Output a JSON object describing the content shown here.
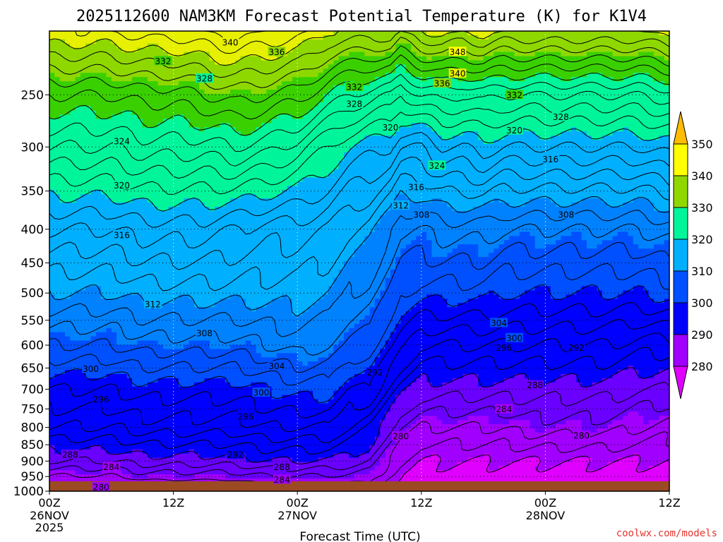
{
  "title": "2025112600 NAM3KM Forecast Potential Temperature (K) for K1V4",
  "xlabel": "Forecast Time (UTC)",
  "credit": "coolwx.com/models",
  "colors": {
    "terrain": "#9b4a23",
    "levels": [
      "#e000ff",
      "#a100ff",
      "#6a00ff",
      "#0000ff",
      "#0050ff",
      "#0082ff",
      "#00b0ff",
      "#00e0ff",
      "#00f59b",
      "#3ad000",
      "#8ed800",
      "#e6f000",
      "#ffff00",
      "#ffbc00"
    ]
  },
  "chart_data": {
    "type": "heatmap",
    "title": "2025112600 NAM3KM Forecast Potential Temperature (K) for K1V4",
    "xlabel": "Forecast Time (UTC)",
    "ylabel": "",
    "y_axis": {
      "scale": "log-pressure",
      "ylim": [
        1000,
        200
      ],
      "ticks": [
        250,
        300,
        350,
        400,
        450,
        500,
        550,
        600,
        650,
        700,
        750,
        800,
        850,
        900,
        950,
        1000
      ]
    },
    "x_axis": {
      "xlim_hours": [
        0,
        60
      ],
      "ticks": [
        {
          "hour": 0,
          "label": "00Z",
          "date": "26NOV",
          "year": "2025"
        },
        {
          "hour": 12,
          "label": "12Z",
          "date": "",
          "year": ""
        },
        {
          "hour": 24,
          "label": "00Z",
          "date": "27NOV",
          "year": ""
        },
        {
          "hour": 36,
          "label": "12Z",
          "date": "",
          "year": ""
        },
        {
          "hour": 48,
          "label": "00Z",
          "date": "28NOV",
          "year": ""
        },
        {
          "hour": 60,
          "label": "12Z",
          "date": "",
          "year": ""
        }
      ]
    },
    "grid": true,
    "legend": "right",
    "colorbar": {
      "ticks": [
        280,
        290,
        300,
        310,
        320,
        330,
        340,
        350
      ],
      "units": "K",
      "extend": "both"
    },
    "contour_interval": 2,
    "contour_labels": [
      {
        "hour": 17.5,
        "p": 208,
        "value": "340"
      },
      {
        "hour": 22.0,
        "p": 215,
        "value": "336"
      },
      {
        "hour": 11.0,
        "p": 222,
        "value": "332"
      },
      {
        "hour": 15.0,
        "p": 236,
        "value": "328"
      },
      {
        "hour": 29.5,
        "p": 243,
        "value": "332"
      },
      {
        "hour": 29.5,
        "p": 258,
        "value": "328"
      },
      {
        "hour": 33.0,
        "p": 280,
        "value": "320"
      },
      {
        "hour": 7.0,
        "p": 294,
        "value": "324"
      },
      {
        "hour": 7.0,
        "p": 343,
        "value": "320"
      },
      {
        "hour": 7.0,
        "p": 408,
        "value": "316"
      },
      {
        "hour": 10.0,
        "p": 520,
        "value": "312"
      },
      {
        "hour": 15.0,
        "p": 575,
        "value": "308"
      },
      {
        "hour": 4.0,
        "p": 652,
        "value": "300"
      },
      {
        "hour": 5.0,
        "p": 725,
        "value": "296"
      },
      {
        "hour": 2.0,
        "p": 880,
        "value": "288"
      },
      {
        "hour": 6.0,
        "p": 918,
        "value": "284"
      },
      {
        "hour": 5.0,
        "p": 985,
        "value": "280"
      },
      {
        "hour": 22.0,
        "p": 645,
        "value": "304"
      },
      {
        "hour": 20.5,
        "p": 708,
        "value": "300"
      },
      {
        "hour": 19.0,
        "p": 770,
        "value": "296"
      },
      {
        "hour": 18.0,
        "p": 880,
        "value": "292"
      },
      {
        "hour": 22.5,
        "p": 918,
        "value": "288"
      },
      {
        "hour": 22.5,
        "p": 960,
        "value": "284"
      },
      {
        "hour": 39.5,
        "p": 215,
        "value": "348"
      },
      {
        "hour": 39.5,
        "p": 232,
        "value": "340"
      },
      {
        "hour": 38.0,
        "p": 240,
        "value": "336"
      },
      {
        "hour": 45.0,
        "p": 250,
        "value": "332"
      },
      {
        "hour": 49.5,
        "p": 270,
        "value": "328"
      },
      {
        "hour": 45.0,
        "p": 283,
        "value": "320"
      },
      {
        "hour": 48.5,
        "p": 313,
        "value": "316"
      },
      {
        "hour": 37.5,
        "p": 320,
        "value": "324"
      },
      {
        "hour": 35.5,
        "p": 345,
        "value": "316"
      },
      {
        "hour": 34.0,
        "p": 368,
        "value": "312"
      },
      {
        "hour": 36.0,
        "p": 380,
        "value": "308"
      },
      {
        "hour": 50.0,
        "p": 380,
        "value": "308"
      },
      {
        "hour": 43.5,
        "p": 555,
        "value": "304"
      },
      {
        "hour": 45.0,
        "p": 585,
        "value": "300"
      },
      {
        "hour": 44.0,
        "p": 605,
        "value": "296"
      },
      {
        "hour": 51.0,
        "p": 605,
        "value": "292"
      },
      {
        "hour": 31.5,
        "p": 660,
        "value": "292"
      },
      {
        "hour": 47.0,
        "p": 690,
        "value": "288"
      },
      {
        "hour": 44.0,
        "p": 750,
        "value": "284"
      },
      {
        "hour": 34.0,
        "p": 825,
        "value": "280"
      },
      {
        "hour": 51.5,
        "p": 823,
        "value": "280"
      }
    ],
    "field_keypoints": {
      "hours": [
        0,
        3,
        6,
        9,
        12,
        15,
        18,
        21,
        24,
        27,
        29,
        31,
        33,
        34,
        36,
        38,
        40,
        42,
        44,
        46,
        48,
        51,
        54,
        57,
        60
      ],
      "surface_theta": [
        280,
        280,
        280,
        281,
        281,
        281,
        281,
        282,
        282,
        282,
        282,
        282,
        280,
        279,
        278,
        278,
        278,
        278,
        278,
        278,
        278,
        278,
        278,
        278,
        278
      ],
      "lapse": [
        {
          "p_upper": 900,
          "theta_gain": [
            8,
            8,
            8,
            8,
            8,
            8,
            8,
            8,
            8,
            8,
            7,
            6,
            4,
            3,
            2,
            2,
            2,
            2,
            2,
            2,
            2,
            2,
            2,
            2,
            2
          ]
        },
        {
          "p_upper": 800,
          "theta_gain": [
            6,
            6,
            6,
            6,
            6,
            6,
            6,
            6,
            6,
            6,
            5,
            4,
            4,
            4,
            4,
            4,
            4,
            4,
            4,
            5,
            5,
            5,
            5,
            4,
            3
          ]
        },
        {
          "p_upper": 700,
          "theta_gain": [
            4,
            4,
            4,
            4,
            4,
            4,
            4,
            4,
            5,
            5,
            4,
            6,
            5,
            5,
            5,
            5,
            5,
            5,
            5,
            4,
            4,
            4,
            4,
            4,
            5
          ]
        },
        {
          "p_upper": 600,
          "theta_gain": [
            6,
            6,
            6,
            6,
            6,
            6,
            6,
            6,
            6,
            5,
            6,
            5,
            6,
            6,
            5,
            5,
            5,
            5,
            5,
            5,
            5,
            5,
            5,
            5,
            5
          ]
        },
        {
          "p_upper": 500,
          "theta_gain": [
            6,
            6,
            6,
            6,
            6,
            6,
            6,
            5,
            4,
            4,
            4,
            4,
            5,
            5,
            7,
            7,
            7,
            7,
            6,
            6,
            6,
            6,
            6,
            7,
            8
          ]
        },
        {
          "p_upper": 400,
          "theta_gain": [
            6,
            6,
            6,
            6,
            6,
            6,
            5,
            4,
            4,
            4,
            4,
            4,
            4,
            4,
            5,
            6,
            6,
            6,
            6,
            6,
            6,
            6,
            6,
            6,
            6
          ]
        },
        {
          "p_upper": 300,
          "theta_gain": [
            10,
            10,
            10,
            10,
            10,
            10,
            12,
            12,
            10,
            8,
            8,
            8,
            10,
            10,
            10,
            11,
            11,
            12,
            12,
            12,
            12,
            12,
            12,
            12,
            12
          ]
        },
        {
          "p_upper": 250,
          "theta_gain": [
            6,
            6,
            6,
            6,
            6,
            7,
            7,
            7,
            8,
            8,
            8,
            8,
            8,
            8,
            10,
            9,
            8,
            8,
            8,
            8,
            8,
            8,
            8,
            8,
            8
          ]
        },
        {
          "p_upper": 200,
          "theta_gain": [
            10,
            10,
            10,
            10,
            10,
            10,
            10,
            10,
            10,
            10,
            12,
            12,
            14,
            14,
            14,
            14,
            14,
            14,
            14,
            14,
            14,
            14,
            14,
            14,
            14
          ]
        }
      ]
    }
  }
}
